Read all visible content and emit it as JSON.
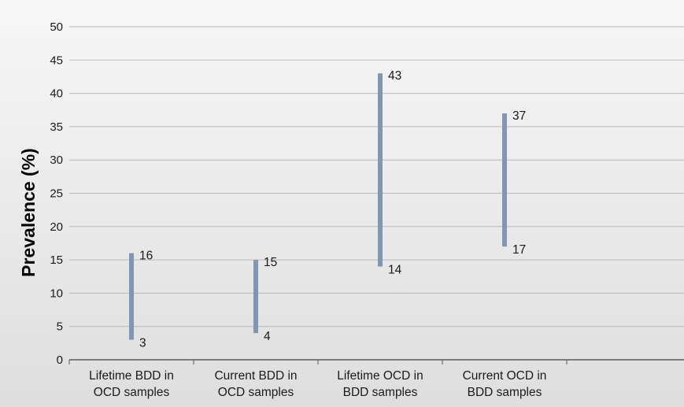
{
  "chart_data": {
    "type": "range",
    "ylabel": "Prevalence (%)",
    "ylim": [
      0,
      50
    ],
    "y_ticks": [
      0,
      5,
      10,
      15,
      20,
      25,
      30,
      35,
      40,
      45,
      50
    ],
    "grid": true,
    "categories": [
      [
        "Lifetime BDD in",
        "OCD samples"
      ],
      [
        "Current BDD in",
        "OCD samples"
      ],
      [
        "Lifetime OCD in",
        "BDD samples"
      ],
      [
        "Current OCD in",
        "BDD samples"
      ]
    ],
    "series": [
      {
        "low": 3,
        "high": 16
      },
      {
        "low": 4,
        "high": 15
      },
      {
        "low": 14,
        "high": 43
      },
      {
        "low": 17,
        "high": 37
      }
    ],
    "colors": {
      "range_bar": "#8097b3",
      "plot_background": "#e4e4e4",
      "gridline": "#b9b9b9",
      "axis_line": "#5a5a5a"
    }
  }
}
